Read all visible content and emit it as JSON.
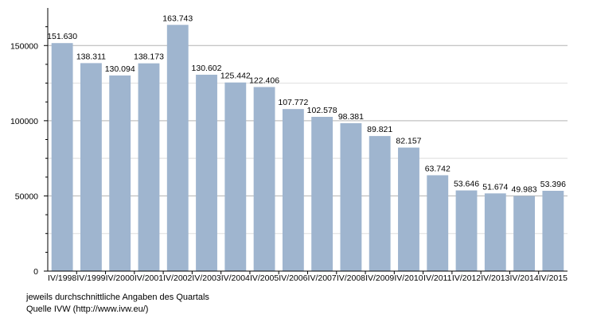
{
  "chart_data": {
    "type": "bar",
    "categories": [
      "IV/1998",
      "IV/1999",
      "IV/2000",
      "IV/2001",
      "IV/2002",
      "IV/2003",
      "IV/2004",
      "IV/2005",
      "IV/2006",
      "IV/2007",
      "IV/2008",
      "IV/2009",
      "IV/2010",
      "IV/2011",
      "IV/2012",
      "IV/2013",
      "IV/2014",
      "IV/2015"
    ],
    "values": [
      151630,
      138311,
      130094,
      138173,
      163743,
      130602,
      125442,
      122406,
      107772,
      102578,
      98381,
      89821,
      82157,
      63742,
      53646,
      51674,
      49983,
      53396
    ],
    "value_labels": [
      "151.630",
      "138.311",
      "130.094",
      "138.173",
      "163.743",
      "130.602",
      "125.442",
      "122.406",
      "107.772",
      "102.578",
      "98.381",
      "89.821",
      "82.157",
      "63.742",
      "53.646",
      "51.674",
      "49.983",
      "53.396"
    ],
    "yticks": [
      0,
      50000,
      100000,
      150000
    ],
    "ytick_labels": [
      "0",
      "50000",
      "100000",
      "150000"
    ],
    "ylim": [
      0,
      175000
    ],
    "grid": true,
    "bar_color": "#9fb5cf",
    "grid_color": "#b3b3b3"
  },
  "notes": {
    "line1": "jeweils durchschnittliche Angaben des Quartals",
    "line2": "Quelle IVW (http://www.ivw.eu/)"
  }
}
